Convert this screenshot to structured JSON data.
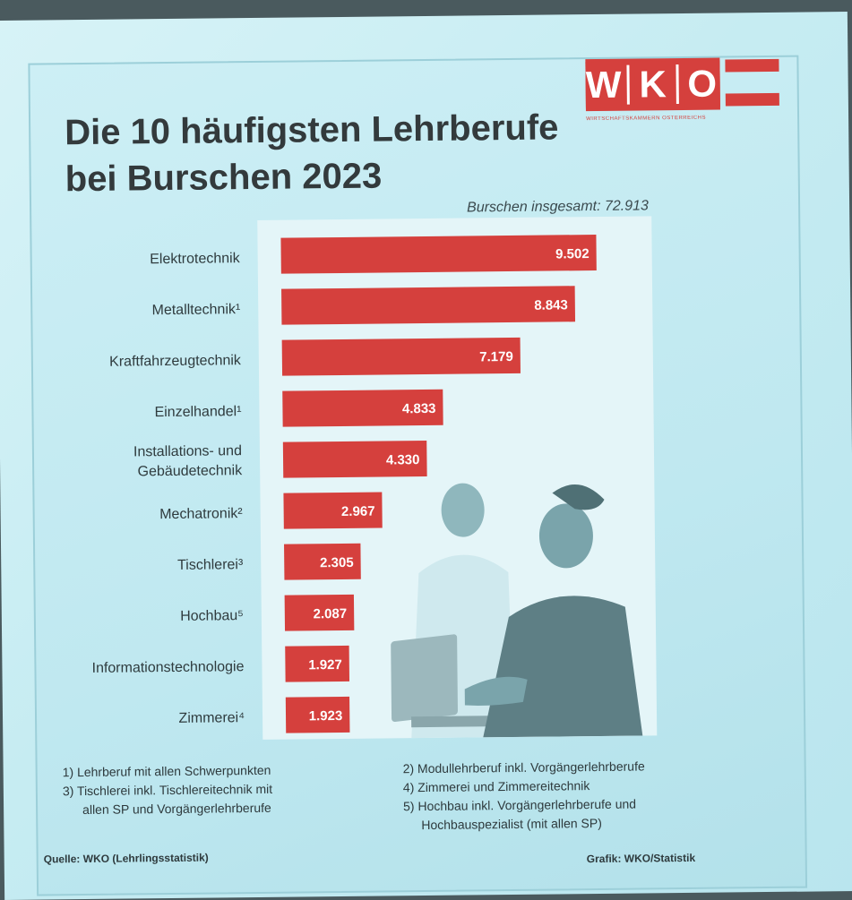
{
  "title_line1": "Die 10 häufigsten Lehrberufe",
  "title_line2": "bei Burschen 2023",
  "logo": {
    "letters": [
      "W",
      "K",
      "O"
    ],
    "subtitle": "WIRTSCHAFTSKAMMERN ÖSTERREICHS",
    "color": "#d5403d"
  },
  "total_label": "Burschen insgesamt: 72.913",
  "chart_data": {
    "type": "bar",
    "orientation": "horizontal",
    "categories": [
      "Elektrotechnik",
      "Metalltechnik¹",
      "Kraftfahrzeugtechnik",
      "Einzelhandel¹",
      "Installations- und Gebäudetechnik",
      "Mechatronik²",
      "Tischlerei³",
      "Hochbau⁵",
      "Informationstechnologie",
      "Zimmerei⁴"
    ],
    "category_lines": [
      [
        "Elektrotechnik"
      ],
      [
        "Metalltechnik¹"
      ],
      [
        "Kraftfahrzeugtechnik"
      ],
      [
        "Einzelhandel¹"
      ],
      [
        "Installations- und",
        "Gebäudetechnik"
      ],
      [
        "Mechatronik²"
      ],
      [
        "Tischlerei³"
      ],
      [
        "Hochbau⁵"
      ],
      [
        "Informationstechnologie"
      ],
      [
        "Zimmerei⁴"
      ]
    ],
    "values": [
      9502,
      8843,
      7179,
      4833,
      4330,
      2967,
      2305,
      2087,
      1927,
      1923
    ],
    "value_labels": [
      "9.502",
      "8.843",
      "7.179",
      "4.833",
      "4.330",
      "2.967",
      "2.305",
      "2.087",
      "1.927",
      "1.923"
    ],
    "bar_color": "#d5403d",
    "xlim": [
      0,
      9502
    ]
  },
  "footnotes": {
    "f1": "1) Lehrberuf mit allen Schwerpunkten",
    "f2": "2) Modullehrberuf inkl. Vorgängerlehrberufe",
    "f3a": "3) Tischlerei inkl. Tischlereitechnik mit",
    "f3b": "allen SP und Vorgängerlehrberufe",
    "f4": "4) Zimmerei und Zimmereitechnik",
    "f5a": "5) Hochbau inkl. Vorgängerlehrberufe und",
    "f5b": "Hochbauspezialist (mit allen SP)"
  },
  "source": "Quelle: WKO (Lehrlingsstatistik)",
  "credit": "Grafik: WKO/Statistik"
}
